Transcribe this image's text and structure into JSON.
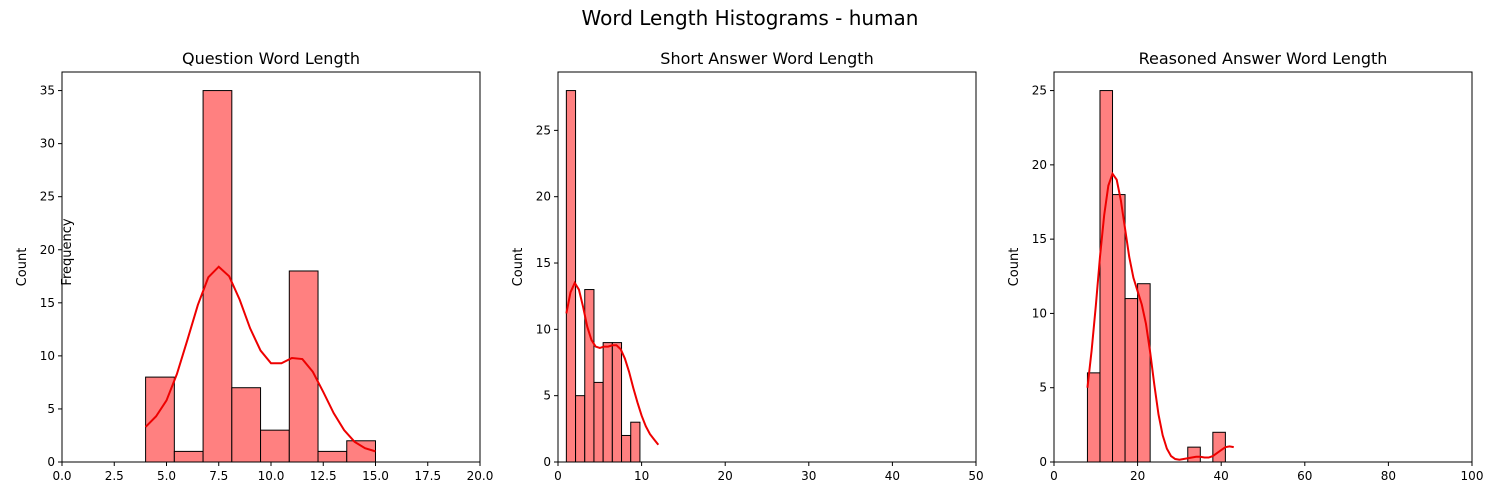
{
  "figure": {
    "suptitle": "Word Length Histograms - human",
    "fig_ylabel": "Frequency"
  },
  "colors": {
    "bar_fill": "#ff8080",
    "bar_edge": "#000000",
    "kde_line": "#ee0000"
  },
  "chart_data": [
    {
      "type": "bar",
      "title": "Question Word Length",
      "xlabel": "",
      "ylabel": "Count",
      "xlim": [
        0,
        20
      ],
      "ylim": [
        0,
        36.75
      ],
      "xticks": [
        0,
        2.5,
        5,
        7.5,
        10,
        12.5,
        15,
        17.5,
        20
      ],
      "xtick_labels": [
        "0.0",
        "2.5",
        "5.0",
        "7.5",
        "10.0",
        "12.5",
        "15.0",
        "17.5",
        "20.0"
      ],
      "yticks": [
        0,
        5,
        10,
        15,
        20,
        25,
        30,
        35
      ],
      "ytick_labels": [
        "0",
        "5",
        "10",
        "15",
        "20",
        "25",
        "30",
        "35"
      ],
      "bins": [
        {
          "x0": 4.0,
          "x1": 5.375,
          "value": 8
        },
        {
          "x0": 5.375,
          "x1": 6.75,
          "value": 1
        },
        {
          "x0": 6.75,
          "x1": 8.125,
          "value": 35
        },
        {
          "x0": 8.125,
          "x1": 9.5,
          "value": 7
        },
        {
          "x0": 9.5,
          "x1": 10.875,
          "value": 3
        },
        {
          "x0": 10.875,
          "x1": 12.25,
          "value": 18
        },
        {
          "x0": 12.25,
          "x1": 13.625,
          "value": 1
        },
        {
          "x0": 13.625,
          "x1": 15.0,
          "value": 2
        }
      ],
      "kde": {
        "x": [
          4.0,
          4.5,
          5.0,
          5.5,
          6.0,
          6.5,
          7.0,
          7.5,
          8.0,
          8.5,
          9.0,
          9.5,
          10.0,
          10.5,
          11.0,
          11.5,
          12.0,
          12.5,
          13.0,
          13.5,
          14.0,
          14.5,
          15.0
        ],
        "y": [
          3.3,
          4.3,
          5.8,
          8.3,
          11.5,
          14.8,
          17.4,
          18.4,
          17.5,
          15.3,
          12.6,
          10.5,
          9.3,
          9.3,
          9.8,
          9.7,
          8.5,
          6.6,
          4.6,
          3.0,
          1.9,
          1.3,
          1.0
        ]
      }
    },
    {
      "type": "bar",
      "title": "Short Answer Word Length",
      "xlabel": "",
      "ylabel": "Count",
      "xlim": [
        0,
        50
      ],
      "ylim": [
        0,
        29.4
      ],
      "xticks": [
        0,
        10,
        20,
        30,
        40,
        50
      ],
      "xtick_labels": [
        "0",
        "10",
        "20",
        "30",
        "40",
        "50"
      ],
      "yticks": [
        0,
        5,
        10,
        15,
        20,
        25
      ],
      "ytick_labels": [
        "0",
        "5",
        "10",
        "15",
        "20",
        "25"
      ],
      "bins": [
        {
          "x0": 1.0,
          "x1": 2.1,
          "value": 28
        },
        {
          "x0": 2.1,
          "x1": 3.2,
          "value": 5
        },
        {
          "x0": 3.2,
          "x1": 4.3,
          "value": 13
        },
        {
          "x0": 4.3,
          "x1": 5.4,
          "value": 6
        },
        {
          "x0": 5.4,
          "x1": 6.5,
          "value": 9
        },
        {
          "x0": 6.5,
          "x1": 7.6,
          "value": 9
        },
        {
          "x0": 7.6,
          "x1": 8.7,
          "value": 2
        },
        {
          "x0": 8.7,
          "x1": 9.8,
          "value": 3
        }
      ],
      "kde": {
        "x": [
          1.0,
          1.5,
          2.0,
          2.5,
          3.0,
          3.5,
          4.0,
          4.5,
          5.0,
          5.5,
          6.0,
          6.5,
          7.0,
          7.5,
          8.0,
          8.5,
          9.0,
          9.5,
          10.0,
          10.5,
          11.0,
          11.5,
          12.0
        ],
        "y": [
          11.2,
          12.8,
          13.5,
          13.0,
          11.7,
          10.2,
          9.2,
          8.7,
          8.6,
          8.7,
          8.7,
          8.8,
          8.8,
          8.5,
          7.8,
          6.8,
          5.6,
          4.5,
          3.5,
          2.7,
          2.1,
          1.7,
          1.3
        ]
      }
    },
    {
      "type": "bar",
      "title": "Reasoned Answer Word Length",
      "xlabel": "",
      "ylabel": "Count",
      "xlim": [
        0,
        100
      ],
      "ylim": [
        0,
        26.25
      ],
      "xticks": [
        0,
        20,
        40,
        60,
        80,
        100
      ],
      "xtick_labels": [
        "0",
        "20",
        "40",
        "60",
        "80",
        "100"
      ],
      "yticks": [
        0,
        5,
        10,
        15,
        20,
        25
      ],
      "ytick_labels": [
        "0",
        "5",
        "10",
        "15",
        "20",
        "25"
      ],
      "bins": [
        {
          "x0": 8.0,
          "x1": 11.0,
          "value": 6
        },
        {
          "x0": 11.0,
          "x1": 14.0,
          "value": 25
        },
        {
          "x0": 14.0,
          "x1": 17.0,
          "value": 18
        },
        {
          "x0": 17.0,
          "x1": 20.0,
          "value": 11
        },
        {
          "x0": 20.0,
          "x1": 23.0,
          "value": 12
        },
        {
          "x0": 23.0,
          "x1": 26.0,
          "value": 0
        },
        {
          "x0": 26.0,
          "x1": 29.0,
          "value": 0
        },
        {
          "x0": 29.0,
          "x1": 32.0,
          "value": 0
        },
        {
          "x0": 32.0,
          "x1": 35.0,
          "value": 1
        },
        {
          "x0": 35.0,
          "x1": 38.0,
          "value": 0
        },
        {
          "x0": 38.0,
          "x1": 41.0,
          "value": 2
        }
      ],
      "kde": {
        "x": [
          8,
          9,
          10,
          11,
          12,
          13,
          14,
          15,
          16,
          17,
          18,
          19,
          20,
          21,
          22,
          23,
          24,
          25,
          26,
          27,
          28,
          29,
          30,
          31,
          32,
          33,
          34,
          35,
          36,
          37,
          38,
          39,
          40,
          41,
          42,
          43
        ],
        "y": [
          5.0,
          7.5,
          10.5,
          13.8,
          16.6,
          18.6,
          19.4,
          19.0,
          17.6,
          15.7,
          13.8,
          12.4,
          11.5,
          10.6,
          9.3,
          7.4,
          5.2,
          3.2,
          1.8,
          0.9,
          0.4,
          0.2,
          0.15,
          0.2,
          0.25,
          0.3,
          0.35,
          0.35,
          0.3,
          0.3,
          0.4,
          0.6,
          0.8,
          1.0,
          1.05,
          1.0
        ]
      }
    }
  ]
}
